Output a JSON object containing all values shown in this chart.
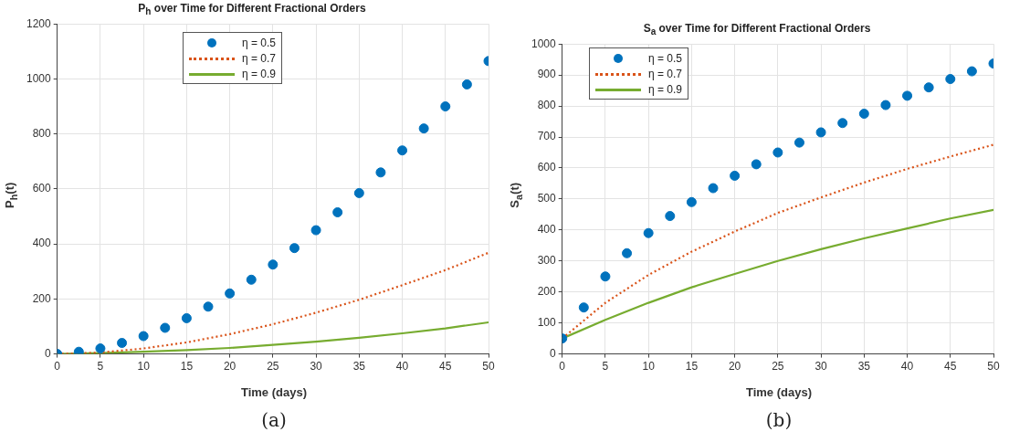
{
  "chart_data": [
    {
      "type": "line",
      "title": "P$_{h}$ over Time for Different Fractional Orders",
      "xlabel": "Time (days)",
      "ylabel": "P$_{h}$(t)",
      "annotations": [
        "(a)"
      ],
      "x": [
        0,
        2.5,
        5,
        7.5,
        10,
        12.5,
        15,
        17.5,
        20,
        22.5,
        25,
        27.5,
        30,
        32.5,
        35,
        37.5,
        40,
        42.5,
        45,
        47.5,
        50
      ],
      "series": [
        {
          "name": "η = 0.5",
          "type": "scatter",
          "marker": "circle",
          "color": "#0072bd",
          "values": [
            0,
            8,
            20,
            40,
            65,
            95,
            130,
            172,
            220,
            270,
            325,
            385,
            450,
            515,
            585,
            660,
            740,
            820,
            900,
            980,
            1065
          ]
        },
        {
          "name": "η = 0.7",
          "type": "line",
          "line_style": "dotted",
          "color": "#d95319",
          "x": [
            0,
            5,
            10,
            15,
            20,
            25,
            30,
            35,
            40,
            45,
            50
          ],
          "values": [
            0,
            5,
            20,
            42,
            72,
            108,
            150,
            197,
            250,
            305,
            368
          ]
        },
        {
          "name": "η = 0.9",
          "type": "line",
          "line_style": "solid",
          "color": "#77ac30",
          "x": [
            0,
            5,
            10,
            15,
            20,
            25,
            30,
            35,
            40,
            45,
            50
          ],
          "values": [
            0,
            3,
            8,
            14,
            22,
            33,
            45,
            59,
            75,
            93,
            115
          ]
        }
      ],
      "xlim": [
        0,
        50
      ],
      "xticks": [
        0,
        5,
        10,
        15,
        20,
        25,
        30,
        35,
        40,
        45,
        50
      ],
      "ylim": [
        0,
        1200
      ],
      "yticks": [
        0,
        200,
        400,
        600,
        800,
        1000,
        1200
      ],
      "grid": true,
      "legend": "top"
    },
    {
      "type": "line",
      "title": "S$_{a}$ over Time for Different Fractional Orders",
      "xlabel": "Time (days)",
      "ylabel": "S$_{a}$(t)",
      "annotations": [
        "(b)"
      ],
      "x": [
        0,
        2.5,
        5,
        7.5,
        10,
        12.5,
        15,
        17.5,
        20,
        22.5,
        25,
        27.5,
        30,
        32.5,
        35,
        37.5,
        40,
        42.5,
        45,
        47.5,
        50
      ],
      "series": [
        {
          "name": "η = 0.5",
          "type": "scatter",
          "marker": "circle",
          "color": "#0072bd",
          "values": [
            50,
            150,
            250,
            325,
            390,
            445,
            490,
            535,
            575,
            612,
            650,
            682,
            715,
            745,
            775,
            803,
            833,
            860,
            887,
            912,
            937
          ]
        },
        {
          "name": "η = 0.7",
          "type": "line",
          "line_style": "dotted",
          "color": "#d95319",
          "x": [
            0,
            5,
            10,
            15,
            20,
            25,
            30,
            35,
            40,
            45,
            50
          ],
          "values": [
            50,
            165,
            255,
            330,
            395,
            455,
            505,
            553,
            597,
            637,
            675
          ]
        },
        {
          "name": "η = 0.9",
          "type": "line",
          "line_style": "solid",
          "color": "#77ac30",
          "x": [
            0,
            5,
            10,
            15,
            20,
            25,
            30,
            35,
            40,
            45,
            50
          ],
          "values": [
            50,
            110,
            165,
            215,
            258,
            300,
            338,
            373,
            405,
            437,
            465
          ]
        }
      ],
      "xlim": [
        0,
        50
      ],
      "xticks": [
        0,
        5,
        10,
        15,
        20,
        25,
        30,
        35,
        40,
        45,
        50
      ],
      "ylim": [
        0,
        1000
      ],
      "yticks": [
        0,
        100,
        200,
        300,
        400,
        500,
        600,
        700,
        800,
        900,
        1000
      ],
      "grid": true,
      "legend": "top left"
    }
  ]
}
